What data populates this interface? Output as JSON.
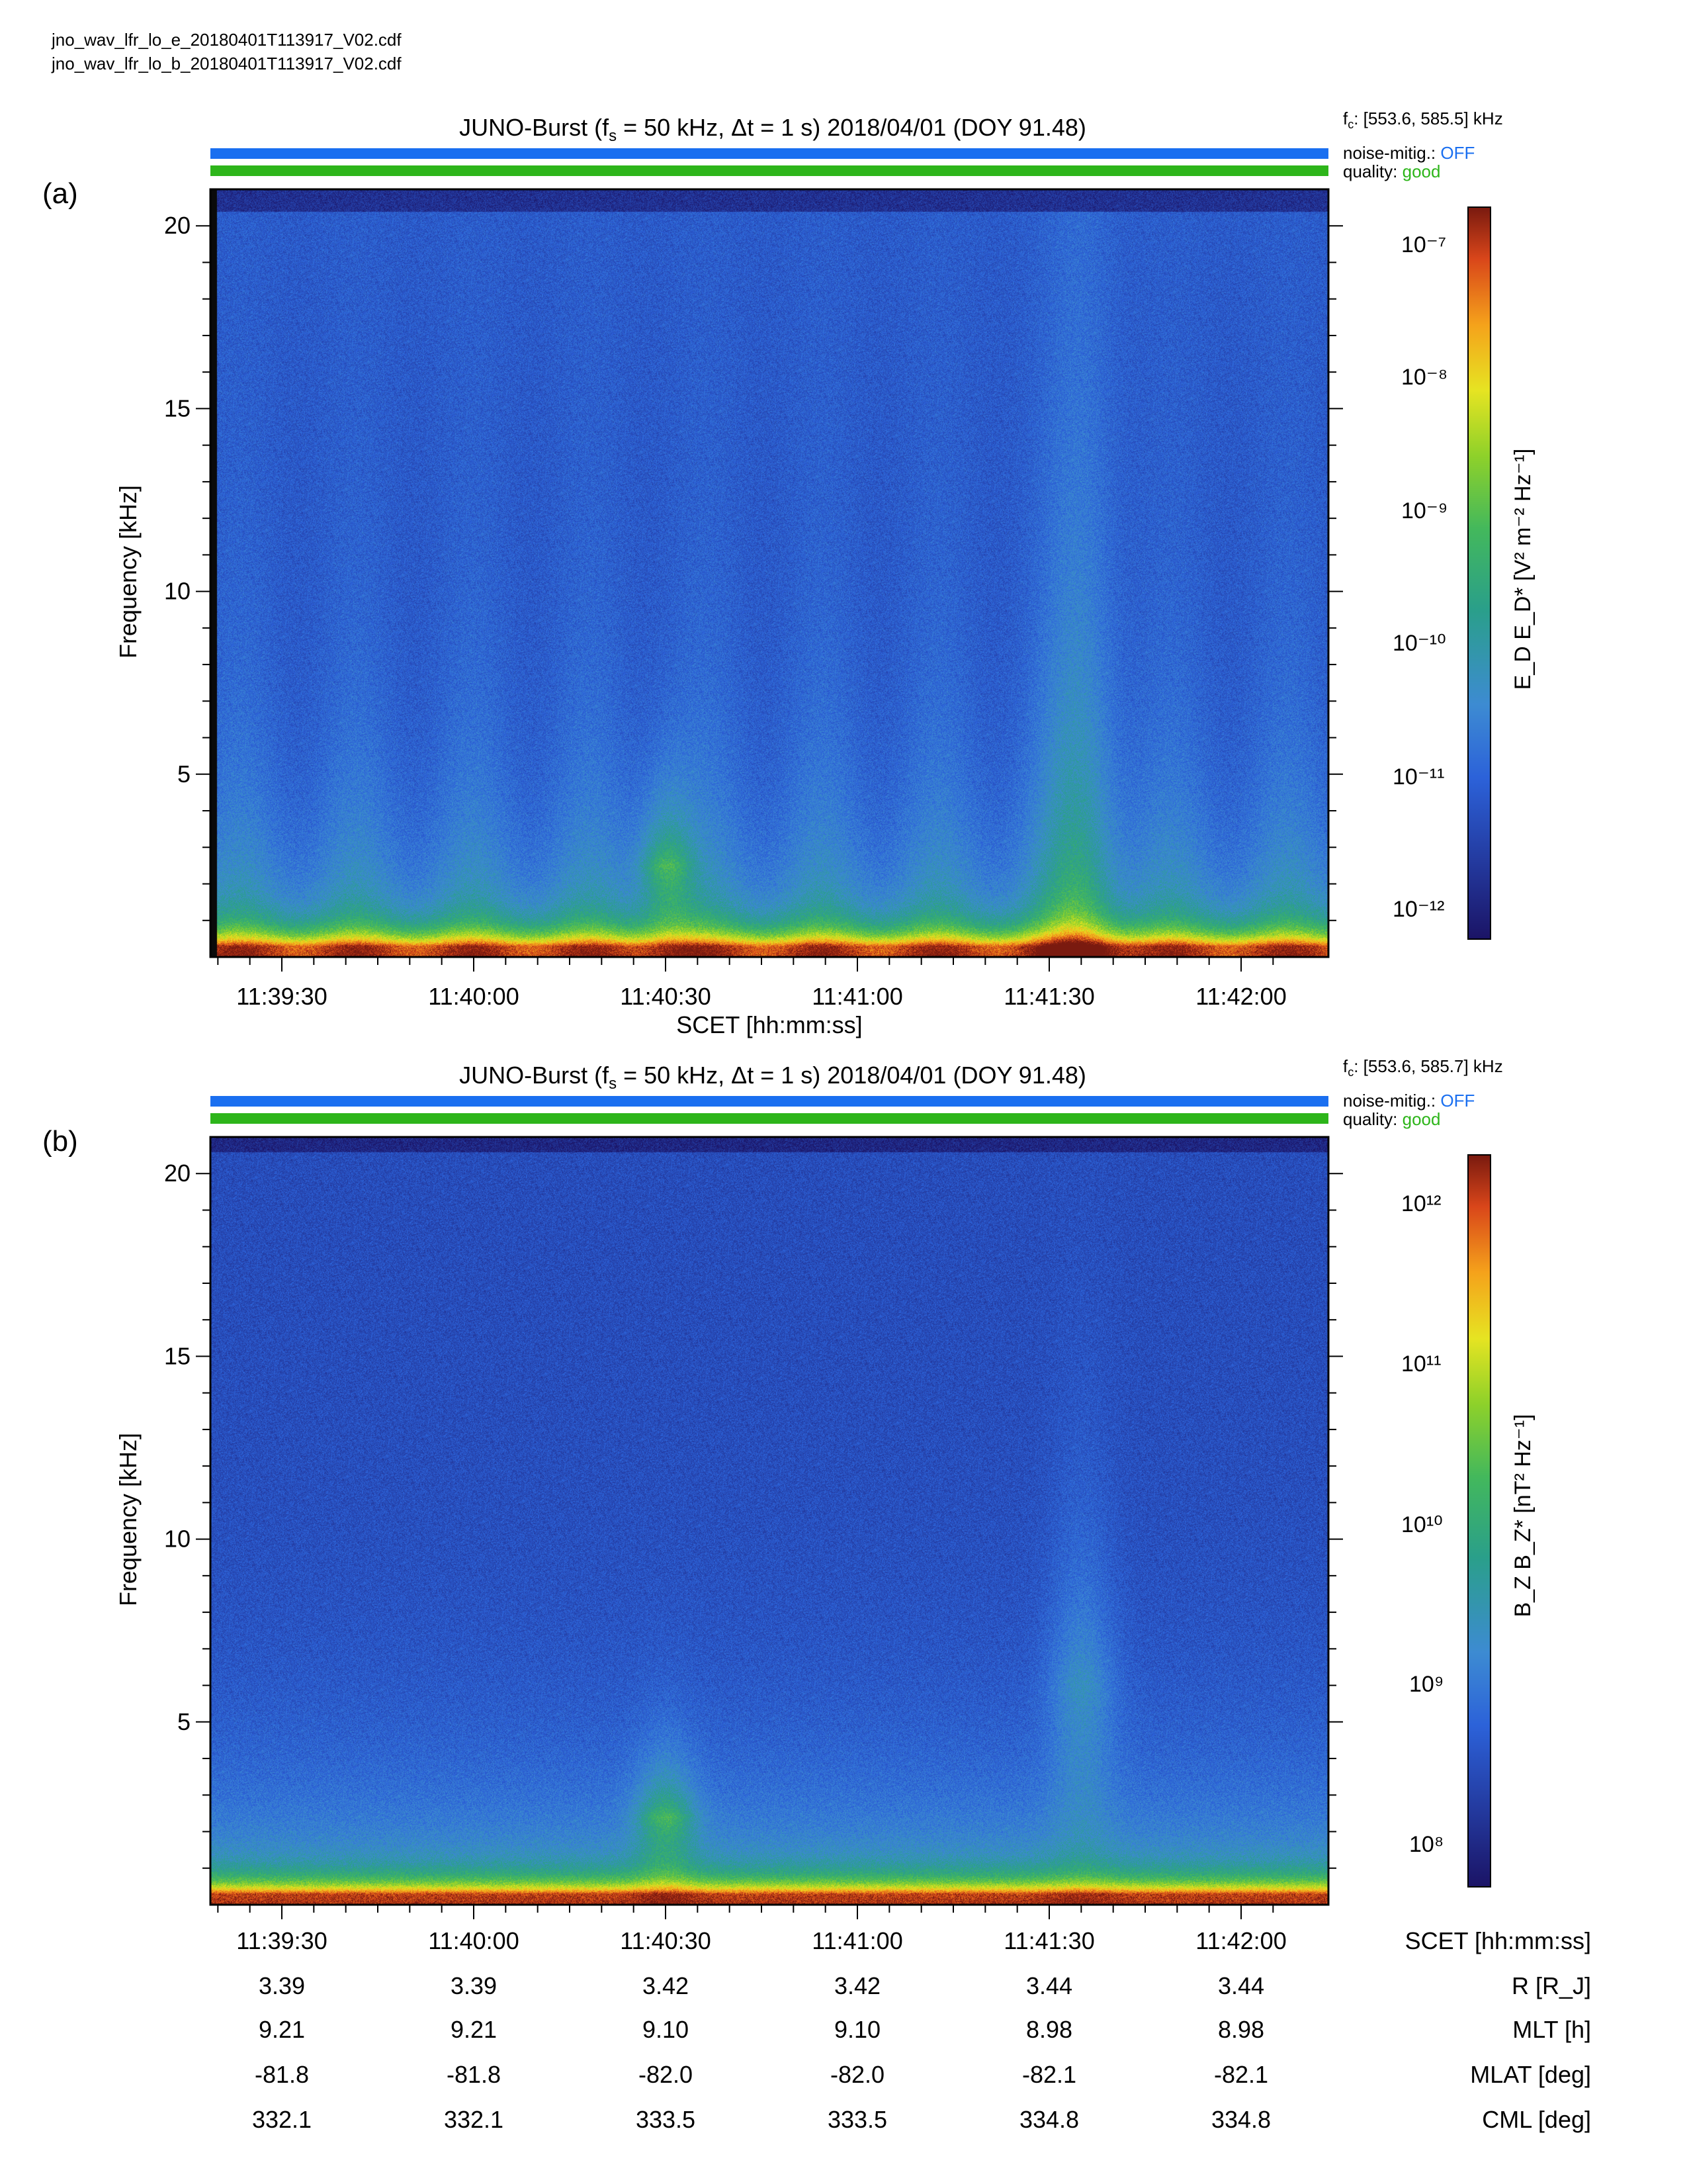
{
  "files": [
    "jno_wav_lfr_lo_e_20180401T113917_V02.cdf",
    "jno_wav_lfr_lo_b_20180401T113917_V02.cdf"
  ],
  "panels": [
    {
      "label": "(a)",
      "title": "JUNO-Burst (f",
      "title_sub": "s",
      "title_rest": " = 50 kHz, Δt = 1 s)  2018/04/01 (DOY 91.48)",
      "fc_prefix": "f",
      "fc_sub": "c",
      "fc_text": ": [553.6, 585.5] kHz",
      "noise_label": "noise-mitig.:",
      "noise_value": "OFF",
      "quality_label": "quality:",
      "quality_value": "good",
      "ylabel": "Frequency [kHz]",
      "xlabel": "SCET [hh:mm:ss]",
      "cb_label": "E_D E_D* [V² m⁻² Hz⁻¹]",
      "cb_ticks": [
        "10⁻⁷",
        "10⁻⁸",
        "10⁻⁹",
        "10⁻¹⁰",
        "10⁻¹¹",
        "10⁻¹²"
      ]
    },
    {
      "label": "(b)",
      "title": "JUNO-Burst (f",
      "title_sub": "s",
      "title_rest": " = 50 kHz, Δt = 1 s)  2018/04/01 (DOY 91.48)",
      "fc_prefix": "f",
      "fc_sub": "c",
      "fc_text": ": [553.6, 585.7] kHz",
      "noise_label": "noise-mitig.:",
      "noise_value": "OFF",
      "quality_label": "quality:",
      "quality_value": "good",
      "ylabel": "Frequency [kHz]",
      "cb_label": "B_Z B_Z* [nT² Hz⁻¹]",
      "cb_ticks": [
        "10¹²",
        "10¹¹",
        "10¹⁰",
        "10⁹",
        "10⁸"
      ]
    }
  ],
  "orbit": {
    "rows": [
      {
        "name": "SCET [hh:mm:ss]",
        "values": [
          "11:39:30",
          "11:40:00",
          "11:40:30",
          "11:41:00",
          "11:41:30",
          "11:42:00"
        ]
      },
      {
        "name": "R [R_J]",
        "values": [
          "3.39",
          "3.39",
          "3.42",
          "3.42",
          "3.44",
          "3.44"
        ]
      },
      {
        "name": "MLT [h]",
        "values": [
          "9.21",
          "9.21",
          "9.10",
          "9.10",
          "8.98",
          "8.98"
        ]
      },
      {
        "name": "MLAT [deg]",
        "values": [
          "-81.8",
          "-81.8",
          "-82.0",
          "-82.0",
          "-82.1",
          "-82.1"
        ]
      },
      {
        "name": "CML [deg]",
        "values": [
          "332.1",
          "332.1",
          "333.5",
          "333.5",
          "334.8",
          "334.8"
        ]
      }
    ]
  },
  "colors": {
    "noise_bar": "#1a6ff0",
    "quality_bar": "#2db51a",
    "off_text": "#1a6ff0",
    "good_text": "#2db51a"
  },
  "chart_data": [
    {
      "type": "heatmap",
      "title": "JUNO-Burst (fs = 50 kHz, Δt = 1 s)  2018/04/01 (DOY 91.48)",
      "xlabel": "SCET [hh:mm:ss]",
      "ylabel": "Frequency [kHz]",
      "x_ticks": [
        "11:39:30",
        "11:40:00",
        "11:40:30",
        "11:41:00",
        "11:41:30",
        "11:42:00"
      ],
      "y_ticks": [
        5,
        10,
        15,
        20
      ],
      "ylim": [
        0,
        21
      ],
      "colorbar": {
        "label": "E_D E_D* [V² m⁻² Hz⁻¹]",
        "scale": "log",
        "range": [
          1e-12,
          1e-07
        ]
      },
      "features": [
        {
          "time": "11:40:30",
          "freq_range_kHz": [
            1,
            3
          ],
          "level": "high"
        },
        {
          "time": "11:41:35",
          "freq_range_kHz": [
            1,
            20
          ],
          "level": "medium"
        }
      ]
    },
    {
      "type": "heatmap",
      "title": "JUNO-Burst (fs = 50 kHz, Δt = 1 s)  2018/04/01 (DOY 91.48)",
      "ylabel": "Frequency [kHz]",
      "x_ticks": [
        "11:39:30",
        "11:40:00",
        "11:40:30",
        "11:41:00",
        "11:41:30",
        "11:42:00"
      ],
      "y_ticks": [
        5,
        10,
        15,
        20
      ],
      "ylim": [
        0,
        21
      ],
      "colorbar": {
        "label": "B_Z B_Z* [nT² Hz⁻¹]",
        "scale": "log",
        "range": [
          60000000.0,
          2000000000000.0
        ]
      },
      "features": [
        {
          "time": "11:40:30",
          "freq_range_kHz": [
            1,
            3
          ],
          "level": "high"
        },
        {
          "time": "11:41:35",
          "freq_range_kHz": [
            2,
            12
          ],
          "level": "medium"
        }
      ]
    }
  ]
}
